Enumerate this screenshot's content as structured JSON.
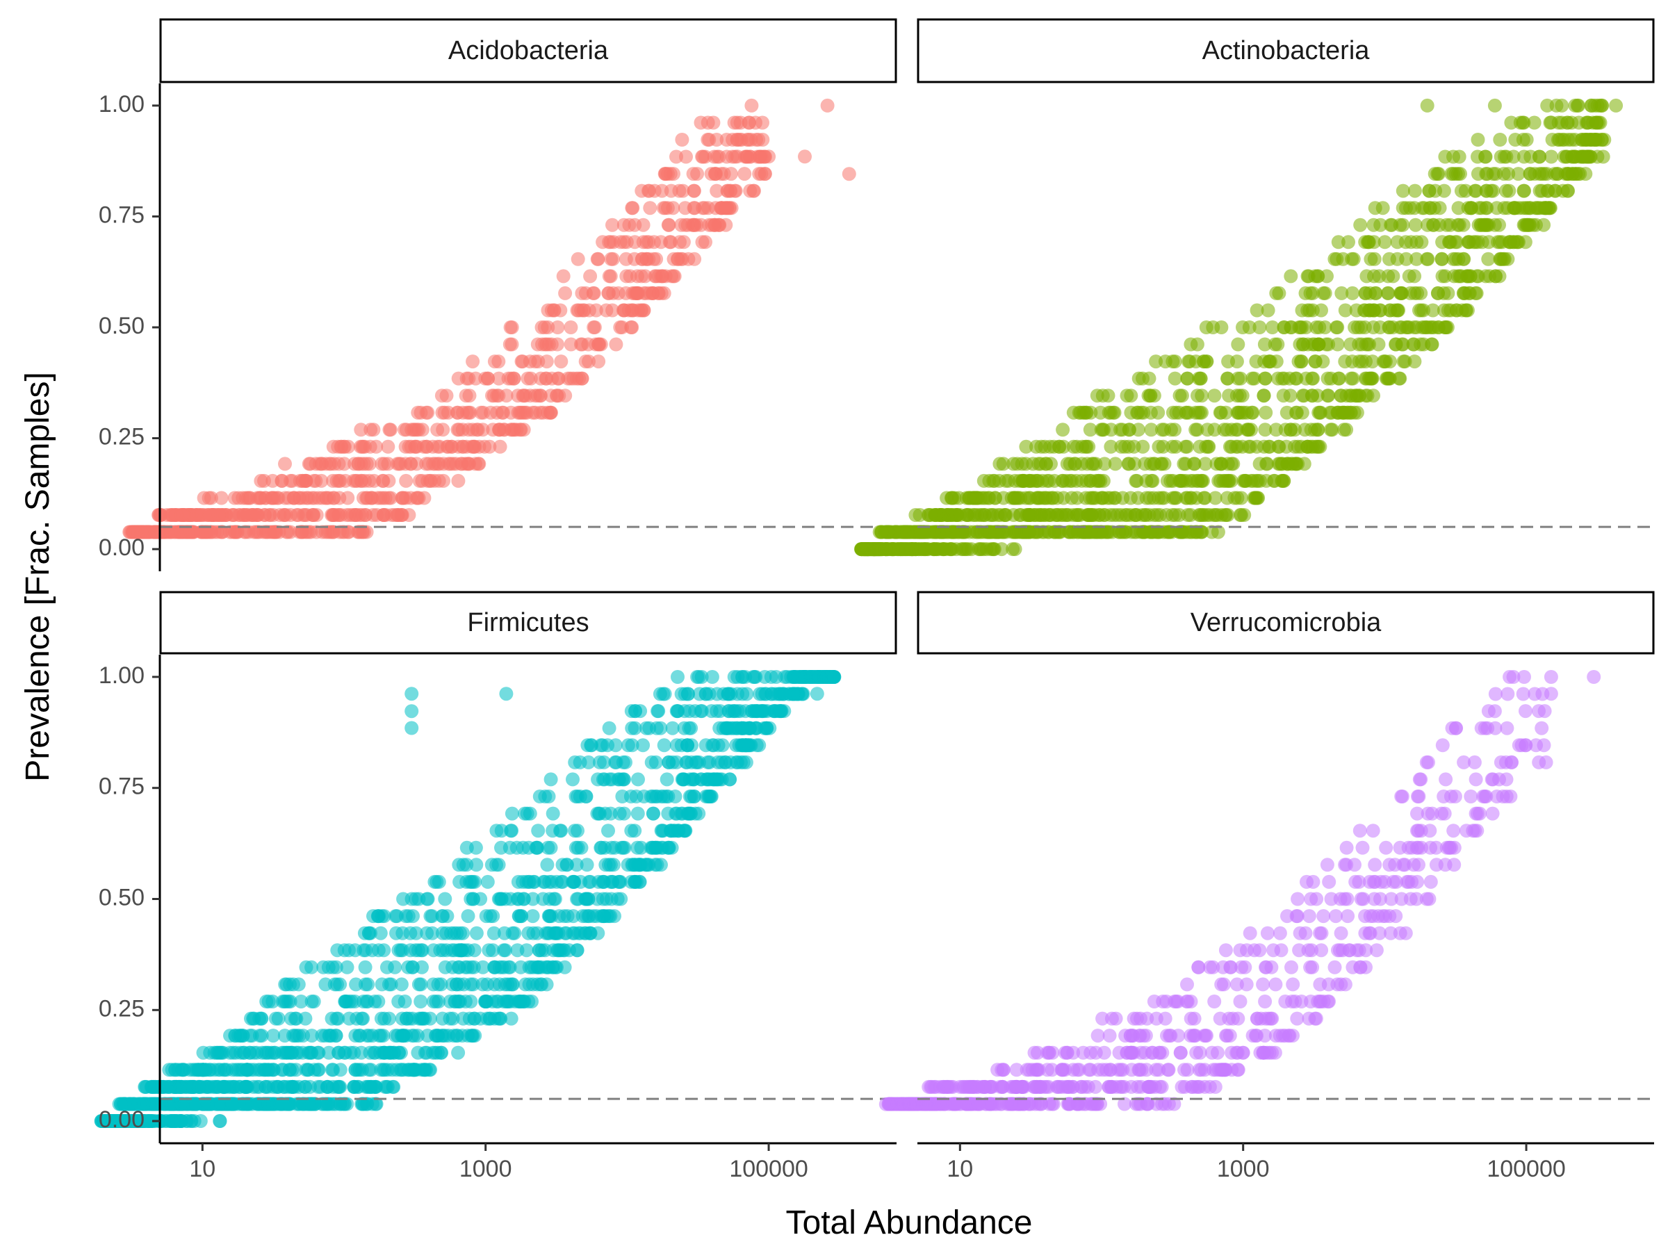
{
  "chart_data": {
    "type": "scatter",
    "title": "",
    "xlabel": "Total Abundance",
    "ylabel": "Prevalence [Frac. Samples]",
    "x_scale": "log10",
    "x_lim": [
      5,
      800000
    ],
    "y_lim": [
      -0.05,
      1.05
    ],
    "x_ticks": [
      10,
      1000,
      100000
    ],
    "x_tick_labels": [
      "10",
      "1000",
      "100000"
    ],
    "y_ticks": [
      0,
      0.25,
      0.5,
      0.75,
      1
    ],
    "y_tick_labels": [
      "0.00",
      "0.25",
      "0.50",
      "0.75",
      "1.00"
    ],
    "threshold_line": {
      "y": 0.05,
      "style": "dashed",
      "color": "#808080"
    },
    "grid": false,
    "layout": "2x2 facet grid",
    "point_alpha": 0.55,
    "facets": [
      {
        "name": "Acidobacteria",
        "color": "#F8766D",
        "n_points": 950,
        "upper_edge_log10_x": [
          0.5,
          1.2,
          2.0,
          2.6,
          3.2,
          3.6,
          4.1,
          4.4,
          4.75
        ],
        "upper_edge_y": [
          0.04,
          0.12,
          0.25,
          0.33,
          0.5,
          0.62,
          0.8,
          0.92,
          1.0
        ],
        "lower_edge_log10_x": [
          0.5,
          2.2,
          3.4,
          4.0,
          5.0
        ],
        "lower_edge_y": [
          0.04,
          0.04,
          0.3,
          0.5,
          0.85
        ],
        "highlight_points": [
          {
            "x": 260000,
            "y": 1.0
          },
          {
            "x": 370000,
            "y": 0.846
          },
          {
            "x": 180000,
            "y": 0.885
          },
          {
            "x": 100000,
            "y": 0.885
          },
          {
            "x": 60000,
            "y": 0.885
          },
          {
            "x": 30000,
            "y": 0.769
          }
        ]
      },
      {
        "name": "Actinobacteria",
        "color": "#7CAE00",
        "n_points": 1600,
        "upper_edge_log10_x": [
          0.3,
          1.0,
          1.5,
          2.0,
          2.5,
          3.0,
          3.5,
          4.0,
          4.4,
          4.8,
          5.3
        ],
        "upper_edge_y": [
          0.0,
          0.12,
          0.23,
          0.35,
          0.43,
          0.55,
          0.65,
          0.8,
          0.88,
          0.96,
          1.0
        ],
        "lower_edge_log10_x": [
          0.3,
          2.8,
          3.8,
          4.6,
          5.5
        ],
        "lower_edge_y": [
          0.0,
          0.04,
          0.3,
          0.55,
          0.9
        ],
        "highlight_points": [
          {
            "x": 2.0,
            "y": 0.0
          },
          {
            "x": 430000,
            "y": 1.0
          },
          {
            "x": 230000,
            "y": 1.0
          },
          {
            "x": 150000,
            "y": 0.962
          },
          {
            "x": 60000,
            "y": 1.0
          },
          {
            "x": 20000,
            "y": 1.0
          }
        ]
      },
      {
        "name": "Firmicutes",
        "color": "#00BFC4",
        "n_points": 1700,
        "upper_edge_log10_x": [
          0.3,
          1.0,
          1.6,
          2.2,
          2.7,
          3.0,
          3.5,
          4.0,
          4.4,
          4.8,
          5.2
        ],
        "upper_edge_y": [
          0.0,
          0.15,
          0.31,
          0.46,
          0.6,
          0.65,
          0.77,
          0.92,
          1.0,
          1.0,
          1.0
        ],
        "lower_edge_log10_x": [
          0.3,
          2.2,
          3.3,
          4.2,
          5.3
        ],
        "lower_edge_y": [
          0.0,
          0.04,
          0.27,
          0.58,
          1.0
        ],
        "highlight_points": [
          {
            "x": 2.0,
            "y": 0.0
          },
          {
            "x": 290000,
            "y": 1.0
          },
          {
            "x": 220000,
            "y": 0.962
          },
          {
            "x": 130000,
            "y": 1.0
          },
          {
            "x": 300,
            "y": 0.923
          },
          {
            "x": 300,
            "y": 0.962
          },
          {
            "x": 300,
            "y": 0.885
          },
          {
            "x": 1400,
            "y": 0.962
          }
        ]
      },
      {
        "name": "Verrucomicrobia",
        "color": "#C77CFF",
        "n_points": 720,
        "upper_edge_log10_x": [
          0.5,
          1.0,
          1.5,
          2.0,
          2.5,
          3.0,
          3.5,
          4.0,
          4.5,
          4.9
        ],
        "upper_edge_y": [
          0.04,
          0.08,
          0.15,
          0.23,
          0.31,
          0.42,
          0.55,
          0.69,
          0.92,
          1.0
        ],
        "lower_edge_log10_x": [
          0.5,
          2.5,
          3.4,
          4.2,
          5.0
        ],
        "lower_edge_y": [
          0.04,
          0.04,
          0.2,
          0.45,
          0.8
        ],
        "highlight_points": [
          {
            "x": 300000,
            "y": 1.0
          },
          {
            "x": 150000,
            "y": 1.0
          },
          {
            "x": 150000,
            "y": 0.962
          },
          {
            "x": 60000,
            "y": 0.923
          },
          {
            "x": 3,
            "y": 0.038
          }
        ]
      }
    ]
  }
}
